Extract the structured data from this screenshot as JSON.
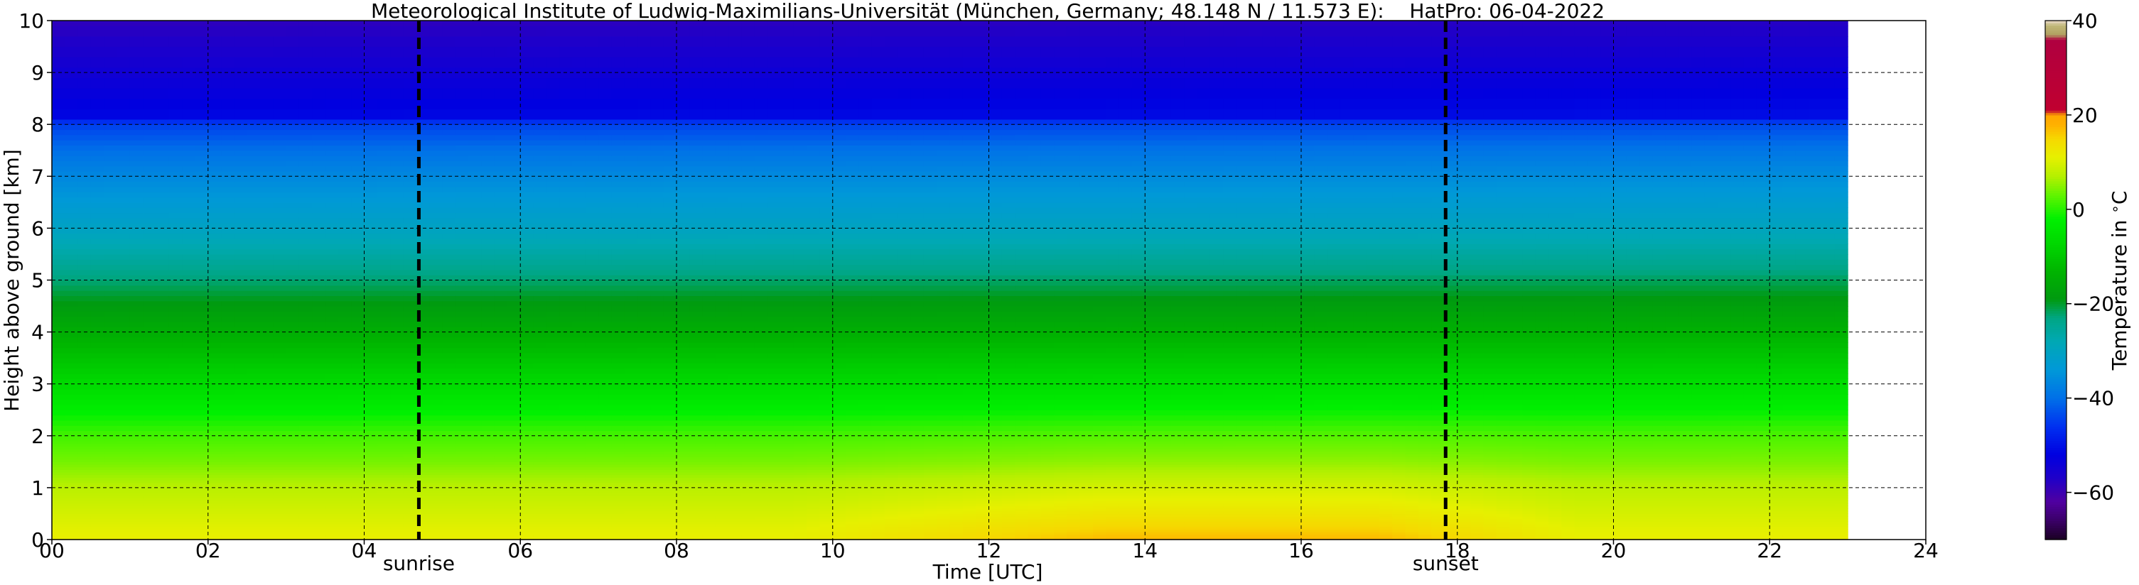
{
  "chart_data": {
    "type": "heatmap",
    "title": "Meteorological Institute of Ludwig-Maximilians-Universität (München, Germany; 48.148 N / 11.573 E):    HatPro: 06-04-2022",
    "xlabel": "Time [UTC]",
    "ylabel": "Height above ground [km]",
    "xlim": [
      0,
      24
    ],
    "ylim": [
      0,
      10
    ],
    "x_ticks": [
      "00",
      "02",
      "04",
      "06",
      "08",
      "10",
      "12",
      "14",
      "16",
      "18",
      "20",
      "22",
      "24"
    ],
    "y_ticks": [
      "0",
      "1",
      "2",
      "3",
      "4",
      "5",
      "6",
      "7",
      "8",
      "9",
      "10"
    ],
    "grid": true,
    "data_end_time": 23.0,
    "markers": [
      {
        "label": "sunrise",
        "time": 4.7
      },
      {
        "label": "sunset",
        "time": 17.85
      }
    ],
    "colorbar": {
      "label": "Temperature in $^\\circ$C",
      "range": [
        -70,
        40
      ],
      "ticks": [
        "−60",
        "−40",
        "−20",
        "0",
        "20",
        "40"
      ],
      "colors": [
        {
          "v": -70,
          "c": "#1a0022"
        },
        {
          "v": -66,
          "c": "#3a0066"
        },
        {
          "v": -62,
          "c": "#5000a0"
        },
        {
          "v": -57,
          "c": "#2000c8"
        },
        {
          "v": -52,
          "c": "#0000e0"
        },
        {
          "v": -46,
          "c": "#0030f0"
        },
        {
          "v": -40,
          "c": "#0070e8"
        },
        {
          "v": -34,
          "c": "#0098d8"
        },
        {
          "v": -28,
          "c": "#00a8b4"
        },
        {
          "v": -23,
          "c": "#00a684"
        },
        {
          "v": -19,
          "c": "#009a10"
        },
        {
          "v": -13,
          "c": "#00b400"
        },
        {
          "v": -7,
          "c": "#00d800"
        },
        {
          "v": -2,
          "c": "#00f000"
        },
        {
          "v": 3,
          "c": "#60f400"
        },
        {
          "v": 7,
          "c": "#b4f000"
        },
        {
          "v": 11,
          "c": "#e6f000"
        },
        {
          "v": 15,
          "c": "#f6d800"
        },
        {
          "v": 18,
          "c": "#ffb000"
        },
        {
          "v": 20,
          "c": "#ffa800"
        },
        {
          "v": 21,
          "c": "#c00030"
        },
        {
          "v": 36,
          "c": "#b00040"
        },
        {
          "v": 37,
          "c": "#b0a060"
        },
        {
          "v": 39,
          "c": "#c0b878"
        },
        {
          "v": 40,
          "c": "#e8d8c8"
        }
      ]
    },
    "profile": {
      "heights_km": [
        0,
        0.5,
        1.0,
        1.5,
        2.0,
        3.0,
        4.0,
        4.5,
        5.0,
        6.0,
        7.0,
        7.5,
        8.0,
        8.2,
        9.0,
        10.0
      ],
      "temps_c_at_04": [
        11.5,
        9.5,
        7.5,
        4.0,
        1.5,
        -6.5,
        -14.5,
        -18.5,
        -22.5,
        -30.5,
        -36.5,
        -40.0,
        -44.5,
        -51.5,
        -54.5,
        -58.5
      ],
      "surface_warming_c_at_15": 6.0,
      "upper_air_change_c": 1.0
    }
  }
}
